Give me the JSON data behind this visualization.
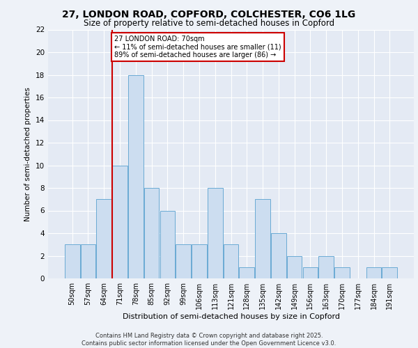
{
  "title_line1": "27, LONDON ROAD, COPFORD, COLCHESTER, CO6 1LG",
  "title_line2": "Size of property relative to semi-detached houses in Copford",
  "xlabel": "Distribution of semi-detached houses by size in Copford",
  "ylabel": "Number of semi-detached properties",
  "categories": [
    "50sqm",
    "57sqm",
    "64sqm",
    "71sqm",
    "78sqm",
    "85sqm",
    "92sqm",
    "99sqm",
    "106sqm",
    "113sqm",
    "121sqm",
    "128sqm",
    "135sqm",
    "142sqm",
    "149sqm",
    "156sqm",
    "163sqm",
    "170sqm",
    "177sqm",
    "184sqm",
    "191sqm"
  ],
  "values": [
    3,
    3,
    7,
    10,
    18,
    8,
    6,
    3,
    3,
    8,
    3,
    1,
    7,
    4,
    2,
    1,
    2,
    1,
    0,
    1,
    1
  ],
  "bar_color": "#ccddf0",
  "bar_edge_color": "#6aaad4",
  "highlight_index": 3,
  "highlight_color": "#cc0000",
  "annotation_text": "27 LONDON ROAD: 70sqm\n← 11% of semi-detached houses are smaller (11)\n89% of semi-detached houses are larger (86) →",
  "annotation_box_color": "#cc0000",
  "ylim": [
    0,
    22
  ],
  "yticks": [
    0,
    2,
    4,
    6,
    8,
    10,
    12,
    14,
    16,
    18,
    20,
    22
  ],
  "footer_text": "Contains HM Land Registry data © Crown copyright and database right 2025.\nContains public sector information licensed under the Open Government Licence v3.0.",
  "background_color": "#eef2f8",
  "plot_bg_color": "#e4eaf4"
}
